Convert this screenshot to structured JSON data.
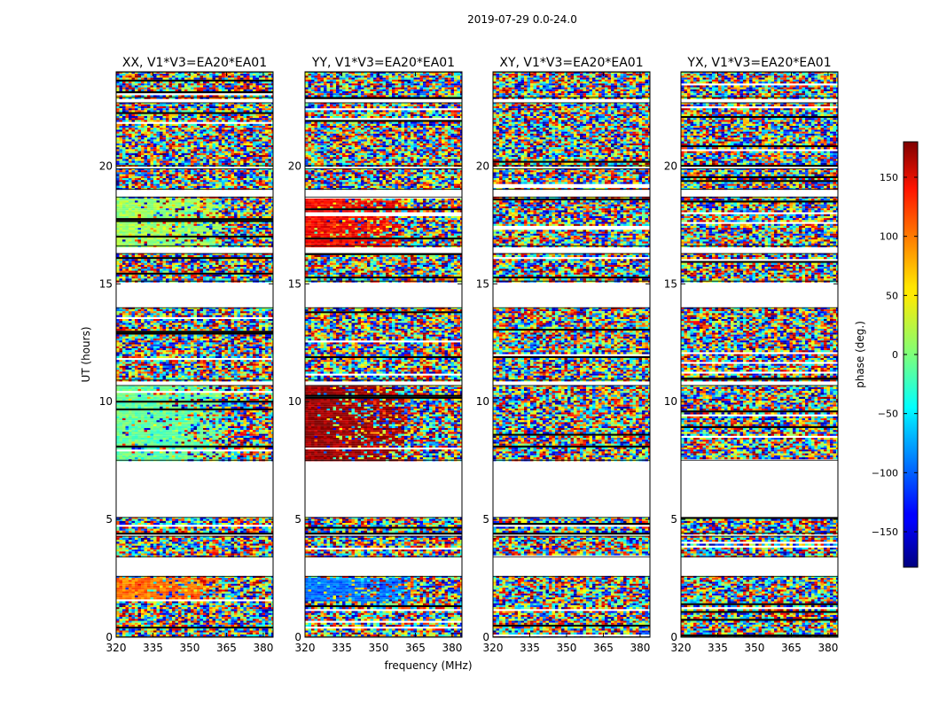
{
  "chart_data": {
    "type": "heatmap",
    "suptitle": "2019-07-29 0.0-24.0",
    "xlabel": "frequency (MHz)",
    "ylabel": "UT (hours)",
    "xlim": [
      320,
      384
    ],
    "ylim": [
      0,
      24
    ],
    "xticks": [
      320,
      335,
      350,
      365,
      380
    ],
    "yticks": [
      0,
      5,
      10,
      15,
      20
    ],
    "panels": [
      {
        "title": "XX, V1*V3=EA20*EA01",
        "pol": "XX"
      },
      {
        "title": "YY, V1*V3=EA20*EA01",
        "pol": "YY"
      },
      {
        "title": "XY, V1*V3=EA20*EA01",
        "pol": "XY"
      },
      {
        "title": "YX, V1*V3=EA20*EA01",
        "pol": "YX"
      }
    ],
    "data_blocks_ut": [
      [
        0.0,
        2.6
      ],
      [
        3.4,
        4.3
      ],
      [
        4.4,
        5.1
      ],
      [
        7.5,
        10.7
      ],
      [
        10.9,
        14.0
      ],
      [
        15.1,
        16.3
      ],
      [
        16.6,
        18.7
      ],
      [
        19.0,
        19.9
      ],
      [
        20.0,
        22.7
      ],
      [
        22.9,
        24.0
      ]
    ],
    "structured_regions": [
      {
        "panel": "XX",
        "ut": [
          7.5,
          10.7
        ],
        "freq": [
          320,
          362
        ],
        "phase_deg": -10
      },
      {
        "panel": "XX",
        "ut": [
          1.6,
          2.6
        ],
        "freq": [
          320,
          362
        ],
        "phase_deg": 95
      },
      {
        "panel": "XX",
        "ut": [
          16.6,
          18.7
        ],
        "freq": [
          320,
          362
        ],
        "phase_deg": 10
      },
      {
        "panel": "YY",
        "ut": [
          7.5,
          10.7
        ],
        "freq": [
          320,
          360
        ],
        "phase_deg": 172
      },
      {
        "panel": "YY",
        "ut": [
          1.6,
          2.6
        ],
        "freq": [
          320,
          363
        ],
        "phase_deg": -95
      },
      {
        "panel": "YY",
        "ut": [
          16.6,
          18.7
        ],
        "freq": [
          320,
          358
        ],
        "phase_deg": 135
      }
    ],
    "colorbar": {
      "label": "phase (deg.)",
      "range": [
        -180,
        180
      ],
      "ticks": [
        -150,
        -100,
        -50,
        0,
        50,
        100,
        150
      ],
      "tick_labels": [
        "−150",
        "−100",
        "−50",
        "0",
        "50",
        "100",
        "150"
      ],
      "colormap": "jet"
    }
  }
}
